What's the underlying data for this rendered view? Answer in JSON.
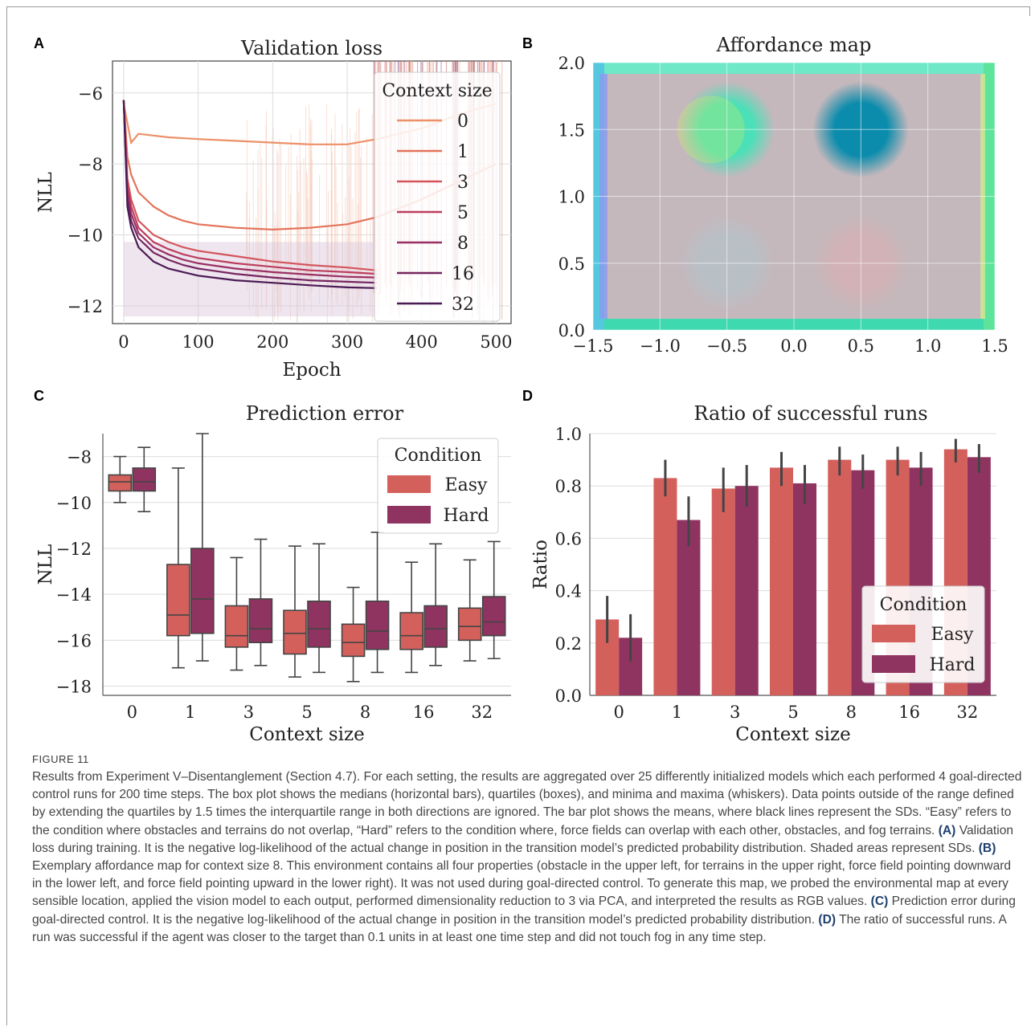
{
  "panels": {
    "A": {
      "letter": "A"
    },
    "B": {
      "letter": "B"
    },
    "C": {
      "letter": "C"
    },
    "D": {
      "letter": "D"
    }
  },
  "chart_data": [
    {
      "id": "A",
      "type": "line",
      "title": "Validation loss",
      "xlabel": "Epoch",
      "ylabel": "NLL",
      "xlim": [
        -15,
        520
      ],
      "ylim": [
        -12.5,
        -5.1
      ],
      "xticks": [
        "0",
        "100",
        "200",
        "300",
        "400",
        "500"
      ],
      "xtick_values": [
        0,
        100,
        200,
        300,
        400,
        500
      ],
      "yticks": [
        "−6",
        "−8",
        "−10",
        "−12"
      ],
      "ytick_values": [
        -6,
        -8,
        -10,
        -12
      ],
      "grid": true,
      "legend": {
        "title": "Context size",
        "placement": "top-right"
      },
      "series": [
        {
          "name": "0",
          "color": "#ec9068",
          "x": [
            0,
            10,
            20,
            40,
            60,
            100,
            150,
            200,
            250,
            300,
            340,
            400,
            450,
            500
          ],
          "y": [
            -6.3,
            -7.4,
            -7.15,
            -7.2,
            -7.25,
            -7.3,
            -7.35,
            -7.4,
            -7.45,
            -7.45,
            -7.3,
            -7.0,
            -6.6,
            -6.3
          ]
        },
        {
          "name": "1",
          "color": "#e4735a",
          "x": [
            0,
            5,
            10,
            20,
            40,
            60,
            80,
            100,
            150,
            200,
            250,
            300,
            340,
            400,
            450,
            500
          ],
          "y": [
            -6.2,
            -7.8,
            -8.3,
            -8.8,
            -9.2,
            -9.45,
            -9.6,
            -9.7,
            -9.8,
            -9.85,
            -9.8,
            -9.7,
            -9.5,
            -9.0,
            -8.5,
            -8.0
          ]
        },
        {
          "name": "3",
          "color": "#d4555c",
          "x": [
            0,
            5,
            10,
            20,
            40,
            60,
            80,
            100,
            150,
            200,
            250,
            300,
            340
          ],
          "y": [
            -6.2,
            -8.4,
            -9.0,
            -9.6,
            -10.0,
            -10.2,
            -10.35,
            -10.45,
            -10.6,
            -10.75,
            -10.85,
            -10.92,
            -11.0
          ]
        },
        {
          "name": "5",
          "color": "#bc3e5e",
          "x": [
            0,
            5,
            10,
            20,
            40,
            60,
            80,
            100,
            150,
            200,
            250,
            300,
            340
          ],
          "y": [
            -6.2,
            -8.6,
            -9.2,
            -9.8,
            -10.2,
            -10.4,
            -10.55,
            -10.65,
            -10.8,
            -10.9,
            -11.0,
            -11.05,
            -11.1
          ]
        },
        {
          "name": "8",
          "color": "#9a2f61",
          "x": [
            0,
            5,
            10,
            20,
            40,
            60,
            80,
            100,
            150,
            200,
            250,
            300,
            340
          ],
          "y": [
            -6.2,
            -8.8,
            -9.4,
            -9.95,
            -10.35,
            -10.55,
            -10.7,
            -10.8,
            -10.95,
            -11.05,
            -11.12,
            -11.18,
            -11.2
          ]
        },
        {
          "name": "16",
          "color": "#742560",
          "x": [
            0,
            5,
            10,
            20,
            40,
            60,
            80,
            100,
            150,
            200,
            250,
            300,
            340
          ],
          "y": [
            -6.2,
            -9.0,
            -9.6,
            -10.1,
            -10.5,
            -10.7,
            -10.85,
            -10.95,
            -11.1,
            -11.2,
            -11.28,
            -11.32,
            -11.35
          ]
        },
        {
          "name": "32",
          "color": "#4a1a55",
          "x": [
            0,
            5,
            10,
            20,
            40,
            60,
            80,
            100,
            150,
            200,
            250,
            300,
            340
          ],
          "y": [
            -6.2,
            -9.2,
            -9.8,
            -10.35,
            -10.75,
            -10.95,
            -11.05,
            -11.15,
            -11.28,
            -11.35,
            -11.42,
            -11.48,
            -11.5
          ]
        }
      ]
    },
    {
      "id": "B",
      "type": "heatmap",
      "title": "Affordance map",
      "xlim": [
        -1.5,
        1.5
      ],
      "ylim": [
        0.0,
        2.0
      ],
      "xticks": [
        "−1.5",
        "−1.0",
        "−0.5",
        "0.0",
        "0.5",
        "1.0",
        "1.5"
      ],
      "xtick_values": [
        -1.5,
        -1.0,
        -0.5,
        0.0,
        0.5,
        1.0,
        1.5
      ],
      "yticks": [
        "0.0",
        "0.5",
        "1.0",
        "1.5",
        "2.0"
      ],
      "ytick_values": [
        0.0,
        0.5,
        1.0,
        1.5,
        2.0
      ],
      "grid": true,
      "background_color": "#c4b8bc",
      "regions": [
        {
          "label": "obstacle",
          "x": -0.5,
          "y": 1.5,
          "r": 0.36,
          "color": "#4be0b8"
        },
        {
          "label": "terrain",
          "x": 0.5,
          "y": 1.5,
          "r": 0.36,
          "color": "#0b8cac"
        },
        {
          "label": "force-field-down",
          "x": -0.5,
          "y": 0.5,
          "r": 0.36,
          "color": "#b8c0c6"
        },
        {
          "label": "force-field-up",
          "x": 0.5,
          "y": 0.5,
          "r": 0.36,
          "color": "#d2b2b6"
        }
      ]
    },
    {
      "id": "C",
      "type": "box",
      "title": "Prediction error",
      "xlabel": "Context size",
      "ylabel": "NLL",
      "ylim": [
        -18.4,
        -7.0
      ],
      "yticks": [
        "−8",
        "−10",
        "−12",
        "−14",
        "−16",
        "−18"
      ],
      "ytick_values": [
        -8,
        -10,
        -12,
        -14,
        -16,
        -18
      ],
      "categories": [
        "0",
        "1",
        "3",
        "5",
        "8",
        "16",
        "32"
      ],
      "grid": true,
      "legend": {
        "title": "Condition",
        "placement": "top-right"
      },
      "series": [
        {
          "name": "Easy",
          "color": "#d4605c",
          "boxes": [
            {
              "min": -10.0,
              "q1": -9.5,
              "median": -9.1,
              "q3": -8.8,
              "max": -8.0
            },
            {
              "min": -17.2,
              "q1": -15.8,
              "median": -14.9,
              "q3": -12.7,
              "max": -8.5
            },
            {
              "min": -17.3,
              "q1": -16.3,
              "median": -15.8,
              "q3": -14.5,
              "max": -12.4
            },
            {
              "min": -17.6,
              "q1": -16.6,
              "median": -15.7,
              "q3": -14.7,
              "max": -11.9
            },
            {
              "min": -17.8,
              "q1": -16.7,
              "median": -16.1,
              "q3": -15.3,
              "max": -13.7
            },
            {
              "min": -17.4,
              "q1": -16.4,
              "median": -15.8,
              "q3": -14.8,
              "max": -12.6
            },
            {
              "min": -16.9,
              "q1": -16.0,
              "median": -15.4,
              "q3": -14.6,
              "max": -12.5
            }
          ]
        },
        {
          "name": "Hard",
          "color": "#8f3461",
          "boxes": [
            {
              "min": -10.4,
              "q1": -9.5,
              "median": -9.1,
              "q3": -8.5,
              "max": -7.6
            },
            {
              "min": -16.9,
              "q1": -15.7,
              "median": -14.2,
              "q3": -12.0,
              "max": -7.0
            },
            {
              "min": -17.1,
              "q1": -16.1,
              "median": -15.5,
              "q3": -14.2,
              "max": -11.6
            },
            {
              "min": -17.4,
              "q1": -16.3,
              "median": -15.5,
              "q3": -14.3,
              "max": -11.8
            },
            {
              "min": -17.4,
              "q1": -16.4,
              "median": -15.6,
              "q3": -14.3,
              "max": -11.3
            },
            {
              "min": -17.1,
              "q1": -16.3,
              "median": -15.5,
              "q3": -14.5,
              "max": -11.8
            },
            {
              "min": -16.8,
              "q1": -15.8,
              "median": -15.2,
              "q3": -14.1,
              "max": -11.7
            }
          ]
        }
      ]
    },
    {
      "id": "D",
      "type": "bar",
      "title": "Ratio of successful runs",
      "xlabel": "Context size",
      "ylabel": "Ratio",
      "ylim": [
        0.0,
        1.0
      ],
      "yticks": [
        "1.0",
        "0.8",
        "0.6",
        "0.4",
        "0.2",
        "0.0"
      ],
      "ytick_values": [
        1.0,
        0.8,
        0.6,
        0.4,
        0.2,
        0.0
      ],
      "categories": [
        "0",
        "1",
        "3",
        "5",
        "8",
        "16",
        "32"
      ],
      "grid": true,
      "legend": {
        "title": "Condition",
        "placement": "lower-right"
      },
      "series": [
        {
          "name": "Easy",
          "color": "#d4605c",
          "values": [
            0.29,
            0.83,
            0.79,
            0.87,
            0.9,
            0.9,
            0.94
          ],
          "err_low": [
            0.2,
            0.76,
            0.7,
            0.8,
            0.84,
            0.84,
            0.89
          ],
          "err_high": [
            0.38,
            0.9,
            0.87,
            0.93,
            0.95,
            0.95,
            0.98
          ]
        },
        {
          "name": "Hard",
          "color": "#8f3461",
          "values": [
            0.22,
            0.67,
            0.8,
            0.81,
            0.86,
            0.87,
            0.91
          ],
          "err_low": [
            0.13,
            0.57,
            0.72,
            0.73,
            0.79,
            0.8,
            0.85
          ],
          "err_high": [
            0.31,
            0.76,
            0.88,
            0.88,
            0.92,
            0.93,
            0.96
          ]
        }
      ]
    }
  ],
  "caption": {
    "label": "FIGURE 11",
    "intro": "Results from Experiment V–Disentanglement (Section 4.7). For each setting, the results are aggregated over 25 differently initialized models which each performed 4 goal-directed control runs for 200 time steps. The box plot shows the medians (horizontal bars), quartiles (boxes), and minima and maxima (whiskers). Data points outside of the range defined by extending the quartiles by 1.5 times the interquartile range in both directions are ignored. The bar plot shows the means, where black lines represent the SDs. “Easy” refers to the condition where obstacles and terrains do not overlap, “Hard” refers to the condition where, force fields can overlap with each other, obstacles, and fog terrains. ",
    "a_label": "(A)",
    "a_text": " Validation loss during training. It is the negative log-likelihood of the actual change in position in the transition model’s predicted probability distribution. Shaded areas represent SDs. ",
    "b_label": "(B)",
    "b_text": " Exemplary affordance map for context size 8. This environment contains all four properties (obstacle in the upper left, for terrains in the upper right, force field pointing downward in the lower left, and force field pointing upward in the lower right). It was not used during goal-directed control. To generate this map, we probed the environmental map at every sensible location, applied the vision model to each output, performed dimensionality reduction to 3 via PCA, and interpreted the results as RGB values. ",
    "c_label": "(C)",
    "c_text": " Prediction error during goal-directed control. It is the negative log-likelihood of the actual change in position in the transition model’s predicted probability distribution. ",
    "d_label": "(D)",
    "d_text": " The ratio of successful runs. A run was successful if the agent was closer to the target than 0.1 units in at least one time step and did not touch fog in any time step."
  }
}
